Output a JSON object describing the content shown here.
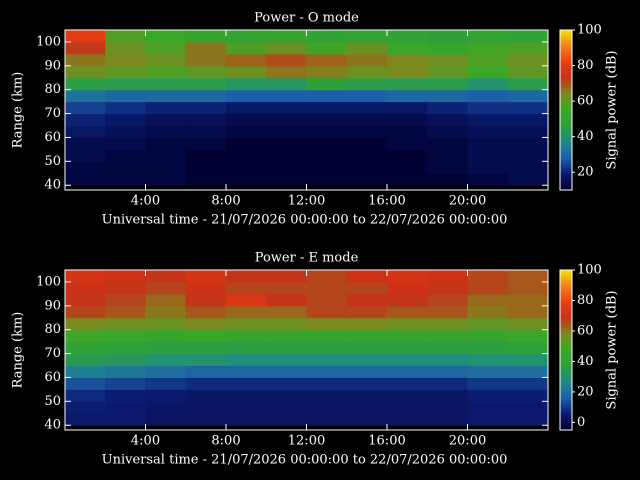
{
  "chart_data": [
    {
      "type": "heatmap",
      "title": "Power - O mode",
      "xlabel": "Universal time - 21/07/2026 00:00:00 to 22/07/2026 00:00:00",
      "ylabel": "Range (km)",
      "colorbar_label": "Signal power (dB)",
      "xlim": [
        0,
        24
      ],
      "xticks": [
        {
          "value": 4,
          "label": "4:00"
        },
        {
          "value": 8,
          "label": "8:00"
        },
        {
          "value": 12,
          "label": "12:00"
        },
        {
          "value": 16,
          "label": "16:00"
        },
        {
          "value": 20,
          "label": "20:00"
        }
      ],
      "ylim": [
        38,
        105
      ],
      "yticks": [
        40,
        50,
        60,
        70,
        80,
        90,
        100
      ],
      "zlim": [
        10,
        100
      ],
      "zticks": [
        20,
        40,
        60,
        80,
        100
      ],
      "colormap": [
        "#000033",
        "#0a1a6e",
        "#1d5ea8",
        "#1f8a8a",
        "#2ea03a",
        "#3aa828",
        "#7a8a20",
        "#c83018",
        "#e84010",
        "#f08020",
        "#f8e000"
      ],
      "x_bins": [
        0,
        2,
        4,
        6,
        8,
        10,
        12,
        14,
        16,
        18,
        20,
        22,
        24
      ],
      "y_bins": [
        40,
        45,
        50,
        55,
        60,
        65,
        70,
        75,
        80,
        85,
        90,
        95,
        100,
        105
      ],
      "z": [
        [
          12,
          12,
          12,
          10,
          10,
          10,
          10,
          10,
          10,
          10,
          12,
          14
        ],
        [
          12,
          12,
          12,
          10,
          10,
          10,
          10,
          10,
          10,
          12,
          14,
          14
        ],
        [
          14,
          12,
          12,
          10,
          10,
          10,
          10,
          10,
          10,
          12,
          14,
          14
        ],
        [
          14,
          14,
          12,
          12,
          10,
          10,
          10,
          10,
          12,
          12,
          14,
          14
        ],
        [
          18,
          16,
          14,
          14,
          12,
          12,
          12,
          12,
          12,
          14,
          16,
          16
        ],
        [
          20,
          18,
          16,
          16,
          14,
          14,
          14,
          14,
          14,
          16,
          18,
          18
        ],
        [
          24,
          22,
          20,
          20,
          18,
          18,
          18,
          18,
          18,
          20,
          22,
          22
        ],
        [
          32,
          30,
          30,
          30,
          28,
          28,
          28,
          28,
          30,
          30,
          28,
          30
        ],
        [
          45,
          44,
          44,
          44,
          42,
          42,
          46,
          44,
          44,
          44,
          40,
          44
        ],
        [
          62,
          60,
          58,
          60,
          62,
          66,
          65,
          62,
          64,
          60,
          55,
          60
        ],
        [
          66,
          64,
          62,
          66,
          68,
          70,
          68,
          66,
          64,
          62,
          58,
          62
        ],
        [
          72,
          62,
          58,
          66,
          58,
          62,
          56,
          62,
          54,
          52,
          56,
          58
        ],
        [
          80,
          58,
          54,
          52,
          50,
          52,
          48,
          50,
          48,
          46,
          50,
          48
        ]
      ]
    },
    {
      "type": "heatmap",
      "title": "Power - E mode",
      "xlabel": "Universal time - 21/07/2026 00:00:00 to 22/07/2026 00:00:00",
      "ylabel": "Range (km)",
      "colorbar_label": "Signal power (dB)",
      "xlim": [
        0,
        24
      ],
      "xticks": [
        {
          "value": 4,
          "label": "4:00"
        },
        {
          "value": 8,
          "label": "8:00"
        },
        {
          "value": 12,
          "label": "12:00"
        },
        {
          "value": 16,
          "label": "16:00"
        },
        {
          "value": 20,
          "label": "20:00"
        }
      ],
      "ylim": [
        38,
        105
      ],
      "yticks": [
        40,
        50,
        60,
        70,
        80,
        90,
        100
      ],
      "zlim": [
        -5,
        100
      ],
      "zticks": [
        0,
        20,
        40,
        60,
        80,
        100
      ],
      "colormap": [
        "#000033",
        "#0a1a6e",
        "#1d5ea8",
        "#1f8a8a",
        "#2ea03a",
        "#3aa828",
        "#7a8a20",
        "#c83018",
        "#e84010",
        "#f08020",
        "#f8e000"
      ],
      "x_bins": [
        0,
        2,
        4,
        6,
        8,
        10,
        12,
        14,
        16,
        18,
        20,
        22,
        24
      ],
      "y_bins": [
        40,
        45,
        50,
        55,
        60,
        65,
        70,
        75,
        80,
        85,
        90,
        95,
        100,
        105
      ],
      "z": [
        [
          5,
          5,
          3,
          3,
          3,
          3,
          3,
          3,
          3,
          3,
          5,
          5
        ],
        [
          6,
          5,
          4,
          3,
          3,
          3,
          3,
          3,
          3,
          3,
          5,
          5
        ],
        [
          8,
          6,
          5,
          4,
          4,
          4,
          4,
          4,
          4,
          4,
          6,
          6
        ],
        [
          14,
          12,
          10,
          8,
          8,
          8,
          8,
          8,
          8,
          8,
          10,
          10
        ],
        [
          24,
          22,
          20,
          18,
          18,
          18,
          18,
          18,
          18,
          18,
          20,
          20
        ],
        [
          34,
          32,
          30,
          30,
          28,
          28,
          28,
          28,
          28,
          28,
          30,
          30
        ],
        [
          40,
          38,
          36,
          36,
          36,
          36,
          36,
          36,
          36,
          36,
          36,
          38
        ],
        [
          48,
          46,
          44,
          45,
          44,
          44,
          44,
          44,
          44,
          44,
          44,
          46
        ],
        [
          58,
          56,
          55,
          58,
          56,
          56,
          58,
          58,
          56,
          56,
          54,
          56
        ],
        [
          66,
          64,
          60,
          64,
          62,
          62,
          66,
          66,
          64,
          64,
          60,
          62
        ],
        [
          68,
          66,
          62,
          68,
          74,
          68,
          66,
          68,
          68,
          66,
          62,
          62
        ],
        [
          70,
          68,
          66,
          70,
          66,
          66,
          66,
          66,
          70,
          68,
          66,
          64
        ],
        [
          72,
          70,
          68,
          72,
          68,
          68,
          66,
          70,
          72,
          70,
          66,
          64
        ]
      ]
    }
  ]
}
